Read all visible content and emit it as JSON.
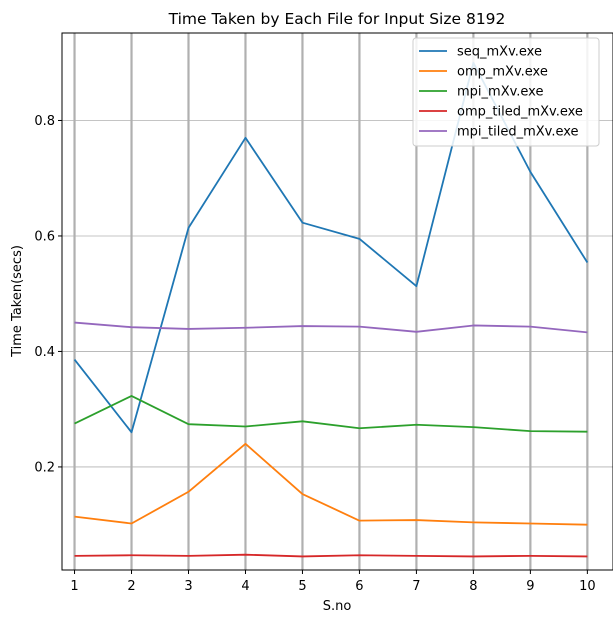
{
  "chart_data": {
    "type": "line",
    "title": "Time Taken by Each File for Input Size 8192",
    "xlabel": "S.no",
    "ylabel": "Time Taken(secs)",
    "x": [
      1,
      2,
      3,
      4,
      5,
      6,
      7,
      8,
      9,
      10
    ],
    "xlim": [
      0.78,
      10.45
    ],
    "ylim": [
      0.0215,
      0.9515
    ],
    "xticks": [
      1,
      2,
      3,
      4,
      5,
      6,
      7,
      8,
      9,
      10
    ],
    "yticks": [
      0.2,
      0.4,
      0.6,
      0.8
    ],
    "ytick_labels": [
      "0.2",
      "0.4",
      "0.6",
      "0.8"
    ],
    "grid": true,
    "legend_position": "upper right",
    "series": [
      {
        "name": "seq_mXv.exe",
        "color": "#1f77b4",
        "values": [
          0.386,
          0.26,
          0.614,
          0.77,
          0.623,
          0.595,
          0.513,
          0.9,
          0.711,
          0.554
        ]
      },
      {
        "name": "omp_mXv.exe",
        "color": "#ff7f0e",
        "values": [
          0.114,
          0.102,
          0.157,
          0.24,
          0.153,
          0.107,
          0.108,
          0.104,
          0.102,
          0.1
        ]
      },
      {
        "name": "mpi_mXv.exe",
        "color": "#2ca02c",
        "values": [
          0.275,
          0.323,
          0.274,
          0.27,
          0.279,
          0.267,
          0.273,
          0.269,
          0.262,
          0.261
        ]
      },
      {
        "name": "omp_tiled_mXv.exe",
        "color": "#d62728",
        "values": [
          0.046,
          0.047,
          0.046,
          0.048,
          0.045,
          0.047,
          0.046,
          0.045,
          0.046,
          0.045
        ]
      },
      {
        "name": "mpi_tiled_mXv.exe",
        "color": "#9467bd",
        "values": [
          0.45,
          0.442,
          0.439,
          0.441,
          0.444,
          0.443,
          0.434,
          0.445,
          0.443,
          0.433
        ]
      }
    ]
  }
}
